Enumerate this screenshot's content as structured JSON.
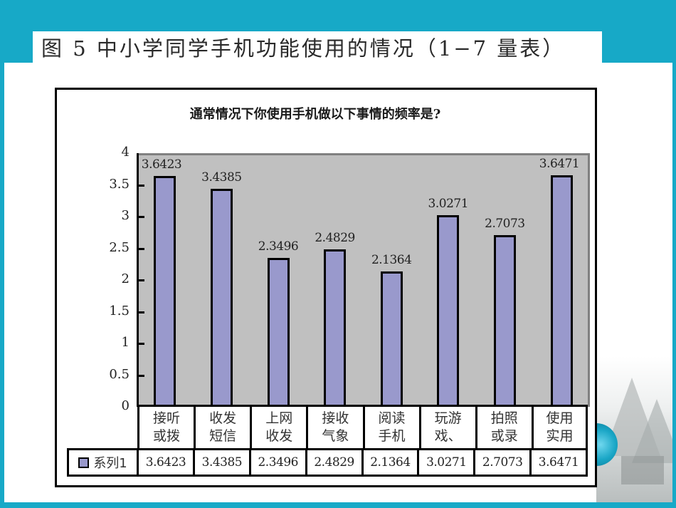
{
  "slide": {
    "title": "图 5  中小学同学手机功能使用的情况（1−7 量表）"
  },
  "colors": {
    "frame": "#17a9c7",
    "plot_bg": "#c0c0c0",
    "bar": "#9999cc",
    "bar_border": "#000000"
  },
  "chart": {
    "title": "通常情况下你使用手机做以下事情的频率是?",
    "y_ticks": [
      "0",
      "0.5",
      "1",
      "1.5",
      "2",
      "2.5",
      "3",
      "3.5",
      "4"
    ],
    "bar_labels": [
      "3.6423",
      "3.4385",
      "2.3496",
      "2.4829",
      "2.1364",
      "3.0271",
      "2.7073",
      "3.6471"
    ],
    "categories": [
      {
        "line1": "接听",
        "line2": "或拨"
      },
      {
        "line1": "收发",
        "line2": "短信"
      },
      {
        "line1": "上网",
        "line2": "收发"
      },
      {
        "line1": "接收",
        "line2": "气象"
      },
      {
        "line1": "阅读",
        "line2": "手机"
      },
      {
        "line1": "玩游",
        "line2": "戏、"
      },
      {
        "line1": "拍照",
        "line2": "或录"
      },
      {
        "line1": "使用",
        "line2": "实用"
      }
    ],
    "legend_label": "系列1",
    "table_values": [
      "3.6423",
      "3.4385",
      "2.3496",
      "2.4829",
      "2.1364",
      "3.0271",
      "2.7073",
      "3.6471"
    ]
  },
  "chart_data": {
    "type": "bar",
    "title": "通常情况下你使用手机做以下事情的频率是?",
    "categories": [
      "接听或拨",
      "收发短信",
      "上网收发",
      "接收气象",
      "阅读手机",
      "玩游戏、",
      "拍照或录",
      "使用实用"
    ],
    "series": [
      {
        "name": "系列1",
        "values": [
          3.6423,
          3.4385,
          2.3496,
          2.4829,
          2.1364,
          3.0271,
          2.7073,
          3.6471
        ]
      }
    ],
    "xlabel": "",
    "ylabel": "",
    "ylim": [
      0,
      4
    ],
    "y_ticks": [
      0,
      0.5,
      1,
      1.5,
      2,
      2.5,
      3,
      3.5,
      4
    ],
    "grid": false,
    "data_labels": true,
    "data_table": true,
    "legend_position": "data-table-left",
    "figure_caption": "图 5 中小学同学手机功能使用的情况（1−7 量表）"
  }
}
